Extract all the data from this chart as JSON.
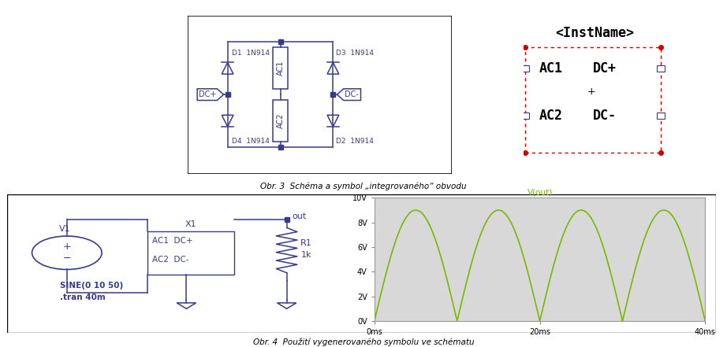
{
  "bg_color": "#ffffff",
  "blue": "#3a3a8c",
  "black": "#000000",
  "red": "#cc0000",
  "green": "#7ab800",
  "caption1": "Obr. 3  Schéma a symbol „integrovaného“ obvodu",
  "caption2": "Obr. 4  Použití vygenerovaného symbolu ve schématu",
  "waveform_title": "V(out)",
  "ytick_vals": [
    0,
    2,
    4,
    6,
    8,
    10
  ],
  "ytick_labels": [
    "0V",
    "2V",
    "4V",
    "6V",
    "8V",
    "10V"
  ],
  "xtick_vals": [
    0,
    20,
    40
  ],
  "xtick_labels": [
    "0ms",
    "20ms",
    "40ms"
  ],
  "amplitude": 9.0,
  "freq_hz": 50,
  "plot_bg": "#d8d8d8"
}
